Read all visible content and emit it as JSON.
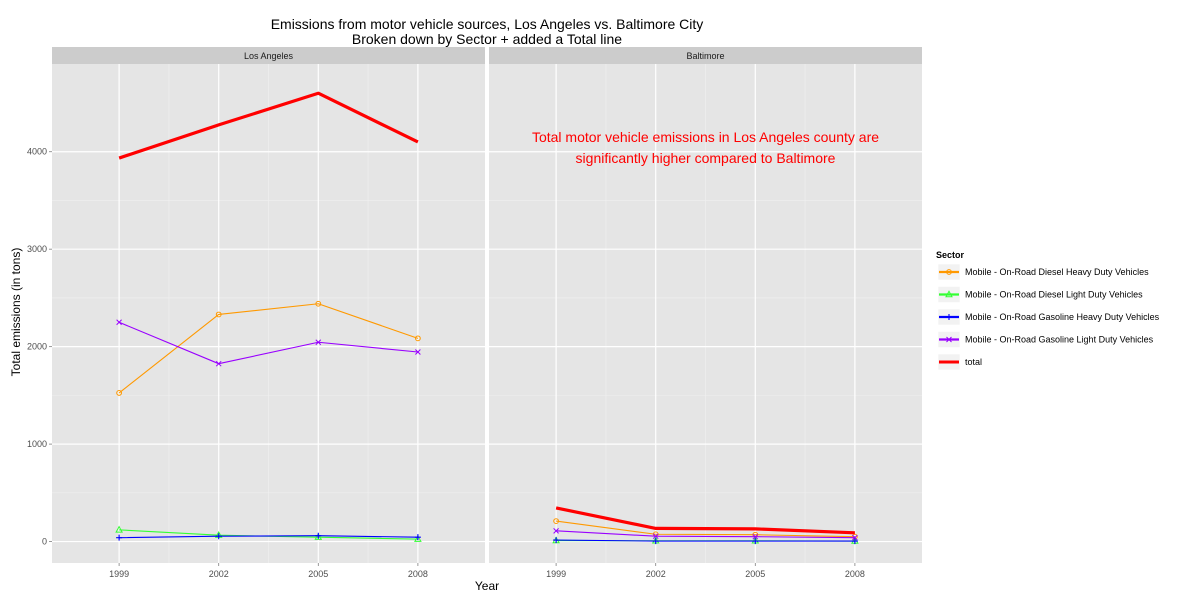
{
  "chart_data": {
    "type": "line",
    "title": "Emissions from motor vehicle sources, Los Angeles vs. Baltimore City",
    "subtitle": "Broken down by Sector + added a Total line",
    "xlabel": "Year",
    "ylabel": "Total emissions (in tons)",
    "x": [
      1999,
      2002,
      2005,
      2008
    ],
    "x_ticks": [
      "1999",
      "2002",
      "2005",
      "2008"
    ],
    "ylim": [
      -220,
      4900
    ],
    "y_ticks": [
      "0",
      "1000",
      "2000",
      "3000",
      "4000"
    ],
    "y_tick_values": [
      0,
      1000,
      2000,
      3000,
      4000
    ],
    "grid": true,
    "legend": {
      "title": "Sector",
      "placement": "right",
      "entries": [
        {
          "label": "Mobile - On-Road Diesel Heavy Duty Vehicles",
          "color": "#ff9900",
          "shape": "circle"
        },
        {
          "label": "Mobile - On-Road Diesel Light Duty Vehicles",
          "color": "#33ff33",
          "shape": "triangle"
        },
        {
          "label": "Mobile - On-Road Gasoline Heavy Duty Vehicles",
          "color": "#0000ff",
          "shape": "plus"
        },
        {
          "label": "Mobile - On-Road Gasoline Light Duty Vehicles",
          "color": "#9900ff",
          "shape": "cross"
        },
        {
          "label": "total",
          "color": "#ff0000",
          "shape": "none"
        }
      ]
    },
    "panels": [
      {
        "strip": "Los Angeles",
        "series": [
          {
            "name": "Mobile - On-Road Diesel Heavy Duty Vehicles",
            "values": [
              1525,
              2330,
              2440,
              2085
            ]
          },
          {
            "name": "Mobile - On-Road Diesel Light Duty Vehicles",
            "values": [
              120,
              65,
              45,
              25
            ]
          },
          {
            "name": "Mobile - On-Road Gasoline Heavy Duty Vehicles",
            "values": [
              40,
              55,
              60,
              45
            ]
          },
          {
            "name": "Mobile - On-Road Gasoline Light Duty Vehicles",
            "values": [
              2250,
              1825,
              2045,
              1945
            ]
          },
          {
            "name": "total",
            "values": [
              3935,
              4275,
              4600,
              4100
            ]
          }
        ],
        "annotation": ""
      },
      {
        "strip": "Baltimore",
        "series": [
          {
            "name": "Mobile - On-Road Diesel Heavy Duty Vehicles",
            "values": [
              210,
              75,
              70,
              50
            ]
          },
          {
            "name": "Mobile - On-Road Diesel Light Duty Vehicles",
            "values": [
              10,
              8,
              8,
              5
            ]
          },
          {
            "name": "Mobile - On-Road Gasoline Heavy Duty Vehicles",
            "values": [
              15,
              5,
              5,
              5
            ]
          },
          {
            "name": "Mobile - On-Road Gasoline Light Duty Vehicles",
            "values": [
              110,
              55,
              50,
              40
            ]
          },
          {
            "name": "total",
            "values": [
              345,
              135,
              130,
              90
            ]
          }
        ],
        "annotation": [
          "Total motor vehicle emissions in Los Angeles county are",
          "significantly higher compared to Baltimore"
        ],
        "annotation_color": "#ff0000"
      }
    ],
    "colors": {
      "panel_background": "#e5e5e5",
      "strip_background": "#cccccc",
      "grid_major": "#ffffff"
    }
  }
}
